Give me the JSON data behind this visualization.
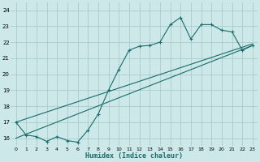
{
  "xlabel": "Humidex (Indice chaleur)",
  "background_color": "#cce8e8",
  "grid_color": "#aacccc",
  "line_color": "#1a6b6b",
  "xlim": [
    -0.5,
    23.5
  ],
  "ylim": [
    15.5,
    24.5
  ],
  "yticks": [
    16,
    17,
    18,
    19,
    20,
    21,
    22,
    23,
    24
  ],
  "xticks": [
    0,
    1,
    2,
    3,
    4,
    5,
    6,
    7,
    8,
    9,
    10,
    11,
    12,
    13,
    14,
    15,
    16,
    17,
    18,
    19,
    20,
    21,
    22,
    23
  ],
  "line1_x": [
    0,
    1,
    2,
    3,
    4,
    5,
    6,
    7,
    8,
    9,
    10,
    11,
    12,
    13,
    14,
    15,
    16,
    17,
    18,
    19,
    20,
    21,
    22,
    23
  ],
  "line1_y": [
    17.0,
    16.2,
    16.1,
    15.8,
    16.1,
    15.85,
    15.75,
    16.5,
    17.5,
    19.0,
    20.3,
    21.5,
    21.75,
    21.8,
    22.0,
    23.1,
    23.55,
    22.2,
    23.1,
    23.1,
    22.75,
    22.65,
    21.5,
    21.8
  ],
  "line2_x": [
    0,
    23
  ],
  "line2_y": [
    16.0,
    21.8
  ],
  "line3_x": [
    0,
    23
  ],
  "line3_y": [
    17.0,
    21.9
  ]
}
